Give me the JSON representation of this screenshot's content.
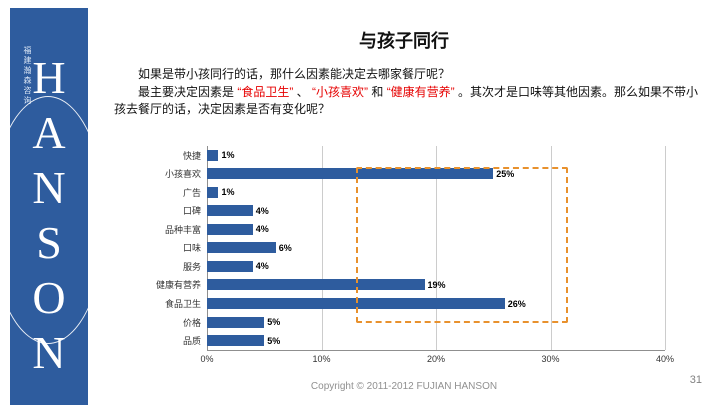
{
  "slide": {
    "title": "与孩子同行",
    "page_number": "31",
    "footer": "Copyright © 2011-2012 FUJIAN  HANSON"
  },
  "body_text": {
    "paragraph1": "如果是带小孩同行的话，那什么因素能决定去哪家餐厅呢？",
    "paragraph2": {
      "prefix": "最主要决定因素是 ",
      "red1": "“食品卫生”",
      "sep1": " 、 ",
      "red2": "“小孩喜欢”",
      "sep2": " 和 ",
      "red3": "“健康有营养”",
      "suffix": " 。其次才是口味等其他因素。那么如果不带小孩去餐厅的话，决定因素是否有变化呢？"
    },
    "red_color": "#e60000"
  },
  "sidebar": {
    "logo_letters": "H\nA\nN\nS\nO\nN",
    "company_vertical_text": "福建瀚森咨询",
    "background_color": "#2E5C9E"
  },
  "chart_data": {
    "type": "bar",
    "orientation": "horizontal",
    "title": "",
    "categories": [
      "快捷",
      "小孩喜欢",
      "广告",
      "口碑",
      "品种丰富",
      "口味",
      "服务",
      "健康有营养",
      "食品卫生",
      "价格",
      "品质"
    ],
    "values": [
      1,
      25,
      1,
      4,
      4,
      6,
      4,
      19,
      26,
      5,
      5
    ],
    "value_labels": [
      "1%",
      "25%",
      "1%",
      "4%",
      "4%",
      "6%",
      "4%",
      "19%",
      "26%",
      "5%",
      "5%"
    ],
    "x_ticks": [
      "0%",
      "10%",
      "20%",
      "30%",
      "40%"
    ],
    "xlim": [
      0,
      40
    ],
    "grid": true,
    "legend": false,
    "bar_color": "#2E5C9E",
    "highlight_box": {
      "x_start": 13,
      "x_end": 31.5,
      "row_start": 1,
      "row_end": 8,
      "color": "#E8912D",
      "style": "dashed"
    }
  }
}
